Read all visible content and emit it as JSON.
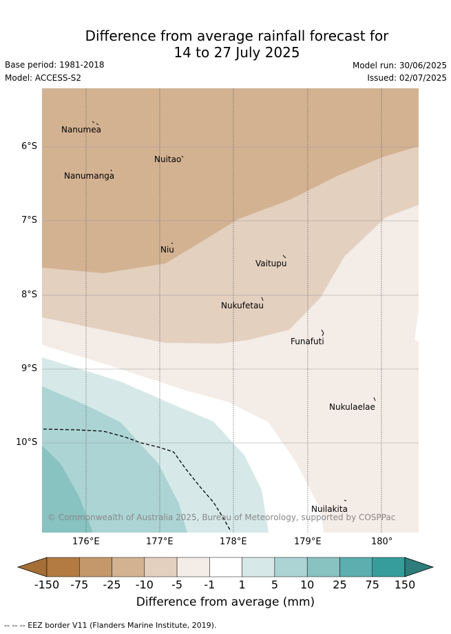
{
  "header": {
    "title_line1": "Difference from average rainfall forecast for",
    "title_line2": "14 to 27 July 2025",
    "base_period": "Base period: 1981-2018",
    "model": "Model: ACCESS-S2",
    "model_run": "Model run: 30/06/2025",
    "issued": "Issued: 02/07/2025"
  },
  "map": {
    "lat_labels": [
      "6°S",
      "7°S",
      "8°S",
      "9°S",
      "10°S"
    ],
    "lon_labels": [
      "176°E",
      "177°E",
      "178°E",
      "179°E",
      "180°"
    ],
    "islands": [
      {
        "name": "Nanumea"
      },
      {
        "name": "Nuitao"
      },
      {
        "name": "Nanumanga"
      },
      {
        "name": "Niu"
      },
      {
        "name": "Vaitupu"
      },
      {
        "name": "Nukufetau"
      },
      {
        "name": "Funafuti"
      },
      {
        "name": "Nukulaelae"
      },
      {
        "name": "Nuilakita"
      }
    ],
    "copyright": "© Commonwealth of Australia 2025, Bureau of Meteorology, supported by COSPPac"
  },
  "legend": {
    "ticks": [
      "-150",
      "-75",
      "-25",
      "-10",
      "-5",
      "-1",
      "1",
      "5",
      "10",
      "25",
      "75",
      "150"
    ],
    "colors": [
      "#a66e37",
      "#b37a41",
      "#c4986b",
      "#d3b292",
      "#e3d0bf",
      "#f4ece6",
      "#ffffff",
      "#d6e9e8",
      "#acd4d4",
      "#88c2c1",
      "#5daeae",
      "#369d9c",
      "#2e7c7b"
    ],
    "label": "Difference from average (mm)"
  },
  "footnote": "-- -- -- EEZ border V11 (Flanders Marine Institute, 2019)."
}
